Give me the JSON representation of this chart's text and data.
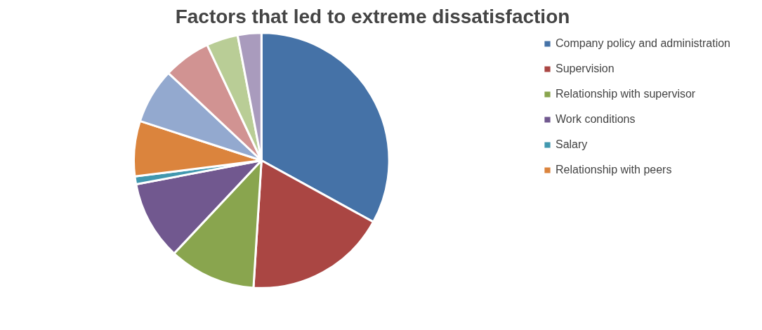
{
  "chart_data": {
    "type": "pie",
    "title": "Factors that led to extreme dissatisfaction",
    "categories": [
      "Company policy and administration",
      "Supervision",
      "Relationship with supervisor",
      "Work conditions",
      "Salary",
      "Relationship with peers",
      null,
      null,
      null,
      null
    ],
    "values": [
      33,
      18,
      11,
      10,
      1,
      7,
      7,
      6,
      4,
      3
    ],
    "colors": [
      "#4572a7",
      "#aa4643",
      "#89a54e",
      "#71588f",
      "#4198af",
      "#db843d",
      "#93a9cf",
      "#d19392",
      "#b9cd96",
      "#a99bbd"
    ],
    "legend": "right"
  }
}
